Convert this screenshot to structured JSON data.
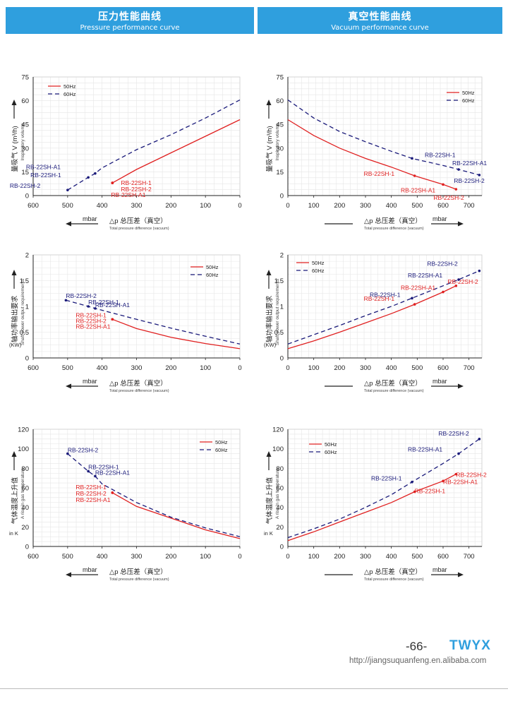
{
  "headers": {
    "left": {
      "zh": "压力性能曲线",
      "en": "Pressure performance curve"
    },
    "right": {
      "zh": "真空性能曲线",
      "en": "Vacuum performance curve"
    }
  },
  "footer": {
    "page": "-66-",
    "brand": "TWYX",
    "url": "http://jiangsuquanfeng.en.alibaba.com"
  },
  "colors": {
    "hz50": "#e02020",
    "hz60": "#1a1a7a",
    "banner": "#2f9fde"
  },
  "chart_data": [
    {
      "id": "pressure-volume",
      "type": "line",
      "xlim": [
        600,
        0
      ],
      "xticks": [
        600,
        500,
        400,
        300,
        200,
        100,
        0
      ],
      "ylim": [
        0,
        75
      ],
      "yticks": [
        0,
        15,
        30,
        45,
        60,
        75
      ],
      "legend": [
        "50Hz",
        "60Hz"
      ],
      "ylabel_zh": "量吸气 V (m³/h)",
      "ylabel_en": "Inspiratory volume",
      "xunit": "mbar",
      "xlabel_zh": "△p 总压差（真空）",
      "xlabel_en": "Total pressure difference (vacuum)",
      "series": [
        {
          "name": "50Hz",
          "x": [
            370,
            300,
            200,
            100,
            0
          ],
          "y": [
            8,
            16.5,
            27,
            37.5,
            48
          ]
        },
        {
          "name": "60Hz",
          "x": [
            500,
            440,
            420,
            400,
            300,
            200,
            100,
            0
          ],
          "y": [
            3.5,
            11.5,
            14,
            17.5,
            29,
            38.5,
            49,
            60.5
          ]
        }
      ],
      "markers": [
        {
          "text": "RB-22SH-1",
          "x": 370,
          "y": 8,
          "color": "hz50"
        },
        {
          "text": "RB-22SH-2",
          "x": 370,
          "y": 8,
          "color": "hz50"
        },
        {
          "text": "RB-22SH-A1",
          "x": 370,
          "y": 8,
          "color": "hz50"
        },
        {
          "text": "RB-22SH-A1",
          "x": 420,
          "y": 14,
          "color": "hz60"
        },
        {
          "text": "RB-22SH-1",
          "x": 440,
          "y": 11.5,
          "color": "hz60"
        },
        {
          "text": "RB-22SH-2",
          "x": 500,
          "y": 3.5,
          "color": "hz60"
        }
      ]
    },
    {
      "id": "vacuum-volume",
      "type": "line",
      "xlim": [
        0,
        750
      ],
      "xticks": [
        0,
        100,
        200,
        300,
        400,
        500,
        600,
        700
      ],
      "ylim": [
        0,
        75
      ],
      "yticks": [
        0,
        15,
        30,
        45,
        60,
        75
      ],
      "legend": [
        "50Hz",
        "60Hz"
      ],
      "ylabel_zh": "量吸气 V (m³/h)",
      "ylabel_en": "Inspiratory volume",
      "xunit": "mbar",
      "xlabel_zh": "△p 总压差（真空）",
      "xlabel_en": "Total pressure difference (vacuum)",
      "series": [
        {
          "name": "50Hz",
          "x": [
            0,
            100,
            200,
            300,
            400,
            490,
            600,
            650
          ],
          "y": [
            48,
            38,
            30,
            23.5,
            18,
            12.5,
            7,
            4
          ]
        },
        {
          "name": "60Hz",
          "x": [
            0,
            100,
            200,
            300,
            400,
            480,
            600,
            660,
            740
          ],
          "y": [
            60.5,
            49,
            40.5,
            34,
            28,
            23.5,
            19,
            16.5,
            13
          ]
        }
      ],
      "markers": [
        {
          "text": "RB-22SH-1",
          "x": 490,
          "y": 12.5,
          "color": "hz50"
        },
        {
          "text": "RB-22SH-A1",
          "x": 600,
          "y": 7,
          "color": "hz50"
        },
        {
          "text": "RB-22SH-2",
          "x": 650,
          "y": 4,
          "color": "hz50"
        },
        {
          "text": "RB-22SH-1",
          "x": 480,
          "y": 23.5,
          "color": "hz60"
        },
        {
          "text": "RB-22SH-A1",
          "x": 660,
          "y": 16.5,
          "color": "hz60"
        },
        {
          "text": "RB-22SH-2",
          "x": 740,
          "y": 13,
          "color": "hz60"
        }
      ]
    },
    {
      "id": "pressure-power",
      "type": "line",
      "xlim": [
        600,
        0
      ],
      "xticks": [
        600,
        500,
        400,
        300,
        200,
        100,
        0
      ],
      "ylim": [
        0,
        2
      ],
      "yticks": [
        0,
        0.5,
        1,
        1.5,
        2
      ],
      "legend": [
        "50Hz",
        "60Hz"
      ],
      "ylabel_zh": "轴功率输出要求",
      "ylabel_en": "Shaft power output requirements",
      "yunit": "(KW)",
      "xunit": "mbar",
      "xlabel_zh": "△p 总压差（真空）",
      "xlabel_en": "Total pressure difference (vacuum)",
      "series": [
        {
          "name": "50Hz",
          "x": [
            370,
            300,
            200,
            100,
            0
          ],
          "y": [
            0.75,
            0.57,
            0.4,
            0.28,
            0.18
          ]
        },
        {
          "name": "60Hz",
          "x": [
            505,
            440,
            420,
            300,
            200,
            100,
            0
          ],
          "y": [
            1.12,
            1.0,
            0.96,
            0.75,
            0.58,
            0.42,
            0.27
          ]
        }
      ],
      "markers": [
        {
          "text": "RB-22SH-1",
          "x": 370,
          "y": 0.75,
          "color": "hz50"
        },
        {
          "text": "RB-22SH-2",
          "x": 370,
          "y": 0.75,
          "color": "hz50"
        },
        {
          "text": "RB-22SH-A1",
          "x": 370,
          "y": 0.75,
          "color": "hz50"
        },
        {
          "text": "RB-22SH-2",
          "x": 505,
          "y": 1.12,
          "color": "hz60"
        },
        {
          "text": "RB-22SH-1",
          "x": 440,
          "y": 1.0,
          "color": "hz60"
        },
        {
          "text": "RB-22SH-A1",
          "x": 420,
          "y": 0.96,
          "color": "hz60"
        }
      ]
    },
    {
      "id": "vacuum-power",
      "type": "line",
      "xlim": [
        0,
        750
      ],
      "xticks": [
        0,
        100,
        200,
        300,
        400,
        500,
        600,
        700
      ],
      "ylim": [
        0,
        2
      ],
      "yticks": [
        0,
        0.5,
        1,
        1.5,
        2
      ],
      "legend": [
        "50Hz",
        "60Hz"
      ],
      "ylabel_zh": "轴功率输出要求",
      "ylabel_en": "Shaft power output requirements",
      "yunit": "(KW)",
      "xunit": "mbar",
      "xlabel_zh": "△p 总压差（真空）",
      "xlabel_en": "Total pressure difference (vacuum)",
      "series": [
        {
          "name": "50Hz",
          "x": [
            0,
            100,
            200,
            300,
            400,
            490,
            600,
            650
          ],
          "y": [
            0.18,
            0.33,
            0.5,
            0.68,
            0.86,
            1.04,
            1.28,
            1.4
          ]
        },
        {
          "name": "60Hz",
          "x": [
            0,
            100,
            200,
            300,
            400,
            480,
            600,
            660,
            740
          ],
          "y": [
            0.27,
            0.45,
            0.63,
            0.82,
            1.0,
            1.16,
            1.4,
            1.52,
            1.69
          ]
        }
      ],
      "markers": [
        {
          "text": "RB-22SH-1",
          "x": 490,
          "y": 1.04,
          "color": "hz50"
        },
        {
          "text": "RB-22SH-A1",
          "x": 600,
          "y": 1.28,
          "color": "hz50"
        },
        {
          "text": "RB-22SH-2",
          "x": 650,
          "y": 1.4,
          "color": "hz50"
        },
        {
          "text": "RB-22SH-1",
          "x": 480,
          "y": 1.16,
          "color": "hz60"
        },
        {
          "text": "RB-22SH-A1",
          "x": 660,
          "y": 1.52,
          "color": "hz60"
        },
        {
          "text": "RB-22SH-2",
          "x": 740,
          "y": 1.69,
          "color": "hz60"
        }
      ]
    },
    {
      "id": "pressure-temp",
      "type": "line",
      "xlim": [
        600,
        0
      ],
      "xticks": [
        600,
        500,
        400,
        300,
        200,
        100,
        0
      ],
      "ylim": [
        0,
        120
      ],
      "yticks": [
        0,
        20,
        40,
        60,
        80,
        100,
        120
      ],
      "legend": [
        "50Hz",
        "60Hz"
      ],
      "ylabel_zh": "气体温度上升值",
      "ylabel_en": "A rise in gas temperature",
      "yunit": "in K",
      "xunit": "mbar",
      "xlabel_zh": "△p 总压差（真空）",
      "xlabel_en": "Total pressure difference (vacuum)",
      "series": [
        {
          "name": "50Hz",
          "x": [
            370,
            300,
            200,
            100,
            0
          ],
          "y": [
            55,
            41,
            29,
            17,
            8
          ]
        },
        {
          "name": "60Hz",
          "x": [
            500,
            440,
            420,
            400,
            300,
            200,
            100,
            0
          ],
          "y": [
            95,
            77,
            72,
            64,
            45,
            30,
            19,
            10
          ]
        }
      ],
      "markers": [
        {
          "text": "RB-22SH-1",
          "x": 370,
          "y": 55,
          "color": "hz50"
        },
        {
          "text": "RB-22SH-2",
          "x": 370,
          "y": 55,
          "color": "hz50"
        },
        {
          "text": "RB-22SH-A1",
          "x": 370,
          "y": 55,
          "color": "hz50"
        },
        {
          "text": "RB-22SH-2",
          "x": 500,
          "y": 95,
          "color": "hz60"
        },
        {
          "text": "RB-22SH-1",
          "x": 440,
          "y": 77,
          "color": "hz60"
        },
        {
          "text": "RB-22SH-A1",
          "x": 420,
          "y": 72,
          "color": "hz60"
        }
      ]
    },
    {
      "id": "vacuum-temp",
      "type": "line",
      "xlim": [
        0,
        750
      ],
      "xticks": [
        0,
        100,
        200,
        300,
        400,
        500,
        600,
        700
      ],
      "ylim": [
        0,
        120
      ],
      "yticks": [
        0,
        20,
        40,
        60,
        80,
        100,
        120
      ],
      "legend": [
        "50Hz",
        "60Hz"
      ],
      "ylabel_zh": "气体温度上升值",
      "ylabel_en": "A rise in gas temperature",
      "yunit": "in K",
      "xunit": "mbar",
      "xlabel_zh": "△p 总压差（真空）",
      "xlabel_en": "Total pressure difference (vacuum)",
      "series": [
        {
          "name": "50Hz",
          "x": [
            0,
            100,
            200,
            300,
            400,
            490,
            600,
            650
          ],
          "y": [
            6,
            15,
            25,
            35,
            45,
            56,
            67,
            74
          ]
        },
        {
          "name": "60Hz",
          "x": [
            0,
            100,
            200,
            300,
            400,
            480,
            600,
            660,
            740
          ],
          "y": [
            9,
            18,
            28,
            40,
            53,
            66,
            85,
            95,
            110
          ]
        }
      ],
      "markers": [
        {
          "text": "RB-22SH-1",
          "x": 490,
          "y": 56,
          "color": "hz50"
        },
        {
          "text": "RB-22SH-A1",
          "x": 600,
          "y": 67,
          "color": "hz50"
        },
        {
          "text": "RB-22SH-2",
          "x": 650,
          "y": 74,
          "color": "hz50"
        },
        {
          "text": "RB-22SH-1",
          "x": 480,
          "y": 66,
          "color": "hz60"
        },
        {
          "text": "RB-22SH-A1",
          "x": 660,
          "y": 95,
          "color": "hz60"
        },
        {
          "text": "RB-22SH-2",
          "x": 740,
          "y": 110,
          "color": "hz60"
        }
      ]
    }
  ]
}
